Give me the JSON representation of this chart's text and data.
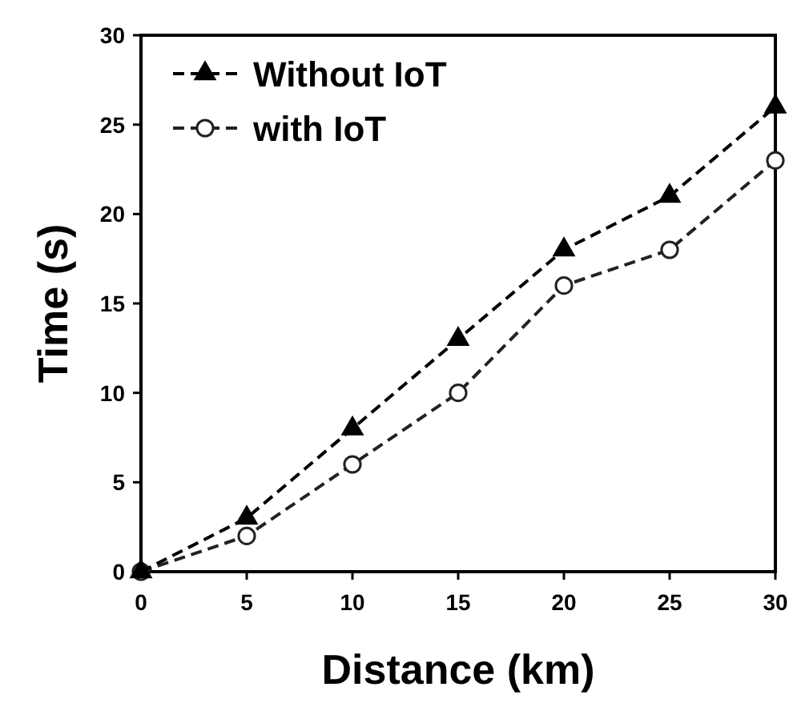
{
  "chart_data": {
    "type": "line",
    "xlabel": "Distance (km)",
    "ylabel": "Time (s)",
    "x": [
      0,
      5,
      10,
      15,
      20,
      25,
      30
    ],
    "series": [
      {
        "name": "Without IoT",
        "color": "#000000",
        "marker": "triangle",
        "values": [
          0,
          3,
          8,
          13,
          18,
          21,
          26
        ]
      },
      {
        "name": "with IoT",
        "color": "#222222",
        "marker": "circle",
        "values": [
          0,
          2,
          6,
          10,
          16,
          18,
          23
        ]
      }
    ],
    "xlim": [
      0,
      30
    ],
    "xticks": [
      0,
      5,
      10,
      15,
      20,
      25,
      30
    ],
    "ylim": [
      0,
      30
    ],
    "yticks": [
      0,
      5,
      10,
      15,
      20,
      25,
      30
    ],
    "line_style": "dashed",
    "legend": "top left",
    "grid": false
  }
}
